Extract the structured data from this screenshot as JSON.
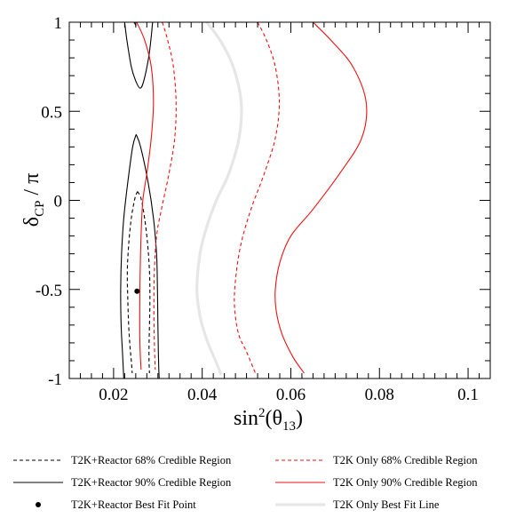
{
  "chart_data": {
    "type": "line",
    "xlabel": "sin²(θ₁₃)",
    "ylabel": "δCP / π",
    "xlim": [
      0.01,
      0.105
    ],
    "ylim": [
      -1,
      1
    ],
    "xticks": [
      0.02,
      0.04,
      0.06,
      0.08,
      0.1
    ],
    "xtick_labels": [
      "0.02",
      "0.04",
      "0.06",
      "0.08",
      "0.1"
    ],
    "yticks": [
      -1,
      -0.5,
      0,
      0.5,
      1
    ],
    "ytick_labels": [
      "-1",
      "-0.5",
      "0",
      "0.5",
      "1"
    ],
    "grid": false,
    "legend_placement": "bottom",
    "colors": {
      "reactor": "#000000",
      "t2k": "#ee1111",
      "best_fit_line": "#e6e6e6"
    },
    "series": [
      {
        "name": "T2K+Reactor 68% Credible Region",
        "style": "dashed",
        "color": "#000000",
        "segments": [
          [
            [
              0.0254,
              0.05
            ],
            [
              0.0248,
              0.01
            ],
            [
              0.024,
              -0.1
            ],
            [
              0.0234,
              -0.25
            ],
            [
              0.0231,
              -0.4
            ],
            [
              0.0232,
              -0.55
            ],
            [
              0.0234,
              -0.7
            ],
            [
              0.0237,
              -0.82
            ],
            [
              0.024,
              -0.9
            ],
            [
              0.0242,
              -0.97
            ]
          ],
          [
            [
              0.0254,
              0.05
            ],
            [
              0.0262,
              0.01
            ],
            [
              0.027,
              -0.1
            ],
            [
              0.0277,
              -0.25
            ],
            [
              0.0281,
              -0.4
            ],
            [
              0.0282,
              -0.55
            ],
            [
              0.0281,
              -0.7
            ],
            [
              0.028,
              -0.82
            ],
            [
              0.028,
              -0.9
            ],
            [
              0.0281,
              -0.97
            ]
          ]
        ]
      },
      {
        "name": "T2K+Reactor 90% Credible Region",
        "style": "solid",
        "color": "#000000",
        "segments": [
          [
            [
              0.0251,
              0.37
            ],
            [
              0.0243,
              0.3
            ],
            [
              0.0232,
              0.1
            ],
            [
              0.0223,
              -0.1
            ],
            [
              0.0218,
              -0.3
            ],
            [
              0.0216,
              -0.5
            ],
            [
              0.0217,
              -0.7
            ],
            [
              0.022,
              -0.85
            ],
            [
              0.0222,
              -0.95
            ],
            [
              0.0223,
              -1.0
            ]
          ],
          [
            [
              0.0251,
              0.37
            ],
            [
              0.0261,
              0.3
            ],
            [
              0.0278,
              0.1
            ],
            [
              0.029,
              -0.1
            ],
            [
              0.0297,
              -0.3
            ],
            [
              0.0299,
              -0.5
            ],
            [
              0.03,
              -0.7
            ],
            [
              0.0301,
              -0.85
            ],
            [
              0.0302,
              -0.95
            ],
            [
              0.0303,
              -1.0
            ]
          ],
          [
            [
              0.0225,
              1.0
            ],
            [
              0.023,
              0.9
            ],
            [
              0.024,
              0.75
            ],
            [
              0.025,
              0.67
            ],
            [
              0.026,
              0.63
            ],
            [
              0.0268,
              0.67
            ],
            [
              0.0279,
              0.8
            ],
            [
              0.0285,
              0.92
            ],
            [
              0.0288,
              1.0
            ]
          ],
          [
            [
              0.0246,
              1.0
            ],
            [
              0.0251,
              0.98
            ]
          ]
        ]
      },
      {
        "name": "T2K Only 68% Credible Region",
        "style": "dashed",
        "color": "#ee1111",
        "segments": [
          [
            [
              0.031,
              1.0
            ],
            [
              0.0322,
              0.9
            ],
            [
              0.0335,
              0.75
            ],
            [
              0.0341,
              0.55
            ],
            [
              0.0338,
              0.35
            ],
            [
              0.0325,
              0.15
            ],
            [
              0.0308,
              -0.05
            ],
            [
              0.0297,
              -0.2
            ],
            [
              0.0292,
              -0.4
            ],
            [
              0.0291,
              -0.6
            ],
            [
              0.0292,
              -0.8
            ],
            [
              0.0294,
              -0.95
            ]
          ],
          [
            [
              0.0525,
              1.0
            ],
            [
              0.0545,
              0.9
            ],
            [
              0.0565,
              0.75
            ],
            [
              0.0574,
              0.55
            ],
            [
              0.0565,
              0.35
            ],
            [
              0.054,
              0.15
            ],
            [
              0.051,
              -0.05
            ],
            [
              0.0487,
              -0.25
            ],
            [
              0.0475,
              -0.45
            ],
            [
              0.0473,
              -0.6
            ],
            [
              0.0482,
              -0.75
            ],
            [
              0.05,
              -0.85
            ],
            [
              0.052,
              -0.97
            ]
          ]
        ]
      },
      {
        "name": "T2K Only 90% Credible Region",
        "style": "solid",
        "color": "#ee1111",
        "segments": [
          [
            [
              0.0252,
              1.0
            ],
            [
              0.027,
              0.9
            ],
            [
              0.0285,
              0.75
            ],
            [
              0.029,
              0.55
            ],
            [
              0.0285,
              0.35
            ],
            [
              0.0275,
              0.15
            ],
            [
              0.0266,
              0.0
            ],
            [
              0.0262,
              -0.2
            ],
            [
              0.026,
              -0.4
            ],
            [
              0.0259,
              -0.6
            ],
            [
              0.0259,
              -0.75
            ],
            [
              0.026,
              -0.85
            ],
            [
              0.0262,
              -0.95
            ]
          ],
          [
            [
              0.065,
              1.0
            ],
            [
              0.069,
              0.9
            ],
            [
              0.074,
              0.75
            ],
            [
              0.077,
              0.55
            ],
            [
              0.076,
              0.35
            ],
            [
              0.071,
              0.15
            ],
            [
              0.065,
              -0.05
            ],
            [
              0.06,
              -0.2
            ],
            [
              0.0575,
              -0.35
            ],
            [
              0.0565,
              -0.5
            ],
            [
              0.0567,
              -0.62
            ],
            [
              0.058,
              -0.75
            ],
            [
              0.0605,
              -0.88
            ],
            [
              0.063,
              -0.97
            ]
          ]
        ]
      },
      {
        "name": "T2K Only Best Fit Line",
        "style": "thick",
        "color": "#e6e6e6",
        "segments": [
          [
            [
              0.041,
              1.0
            ],
            [
              0.044,
              0.9
            ],
            [
              0.047,
              0.75
            ],
            [
              0.0488,
              0.55
            ],
            [
              0.0483,
              0.35
            ],
            [
              0.046,
              0.15
            ],
            [
              0.0432,
              0.0
            ],
            [
              0.041,
              -0.15
            ],
            [
              0.0395,
              -0.3
            ],
            [
              0.0388,
              -0.5
            ],
            [
              0.0395,
              -0.65
            ],
            [
              0.041,
              -0.78
            ],
            [
              0.043,
              -0.9
            ],
            [
              0.0443,
              -0.98
            ]
          ]
        ]
      }
    ],
    "points": [
      {
        "name": "T2K+Reactor Best Fit Point",
        "x": 0.0253,
        "y": -0.51,
        "color": "#000000"
      }
    ],
    "legend": [
      {
        "label": "T2K+Reactor 68% Credible Region",
        "style": "dashed",
        "color": "#000000"
      },
      {
        "label": "T2K Only 68% Credible Region",
        "style": "dashed",
        "color": "#ee1111"
      },
      {
        "label": "T2K+Reactor 90% Credible Region",
        "style": "solid",
        "color": "#000000"
      },
      {
        "label": "T2K Only 90% Credible Region",
        "style": "solid",
        "color": "#ee1111"
      },
      {
        "label": "T2K+Reactor Best Fit Point",
        "style": "point",
        "color": "#000000"
      },
      {
        "label": "T2K Only Best Fit Line",
        "style": "thick",
        "color": "#e6e6e6"
      }
    ]
  }
}
